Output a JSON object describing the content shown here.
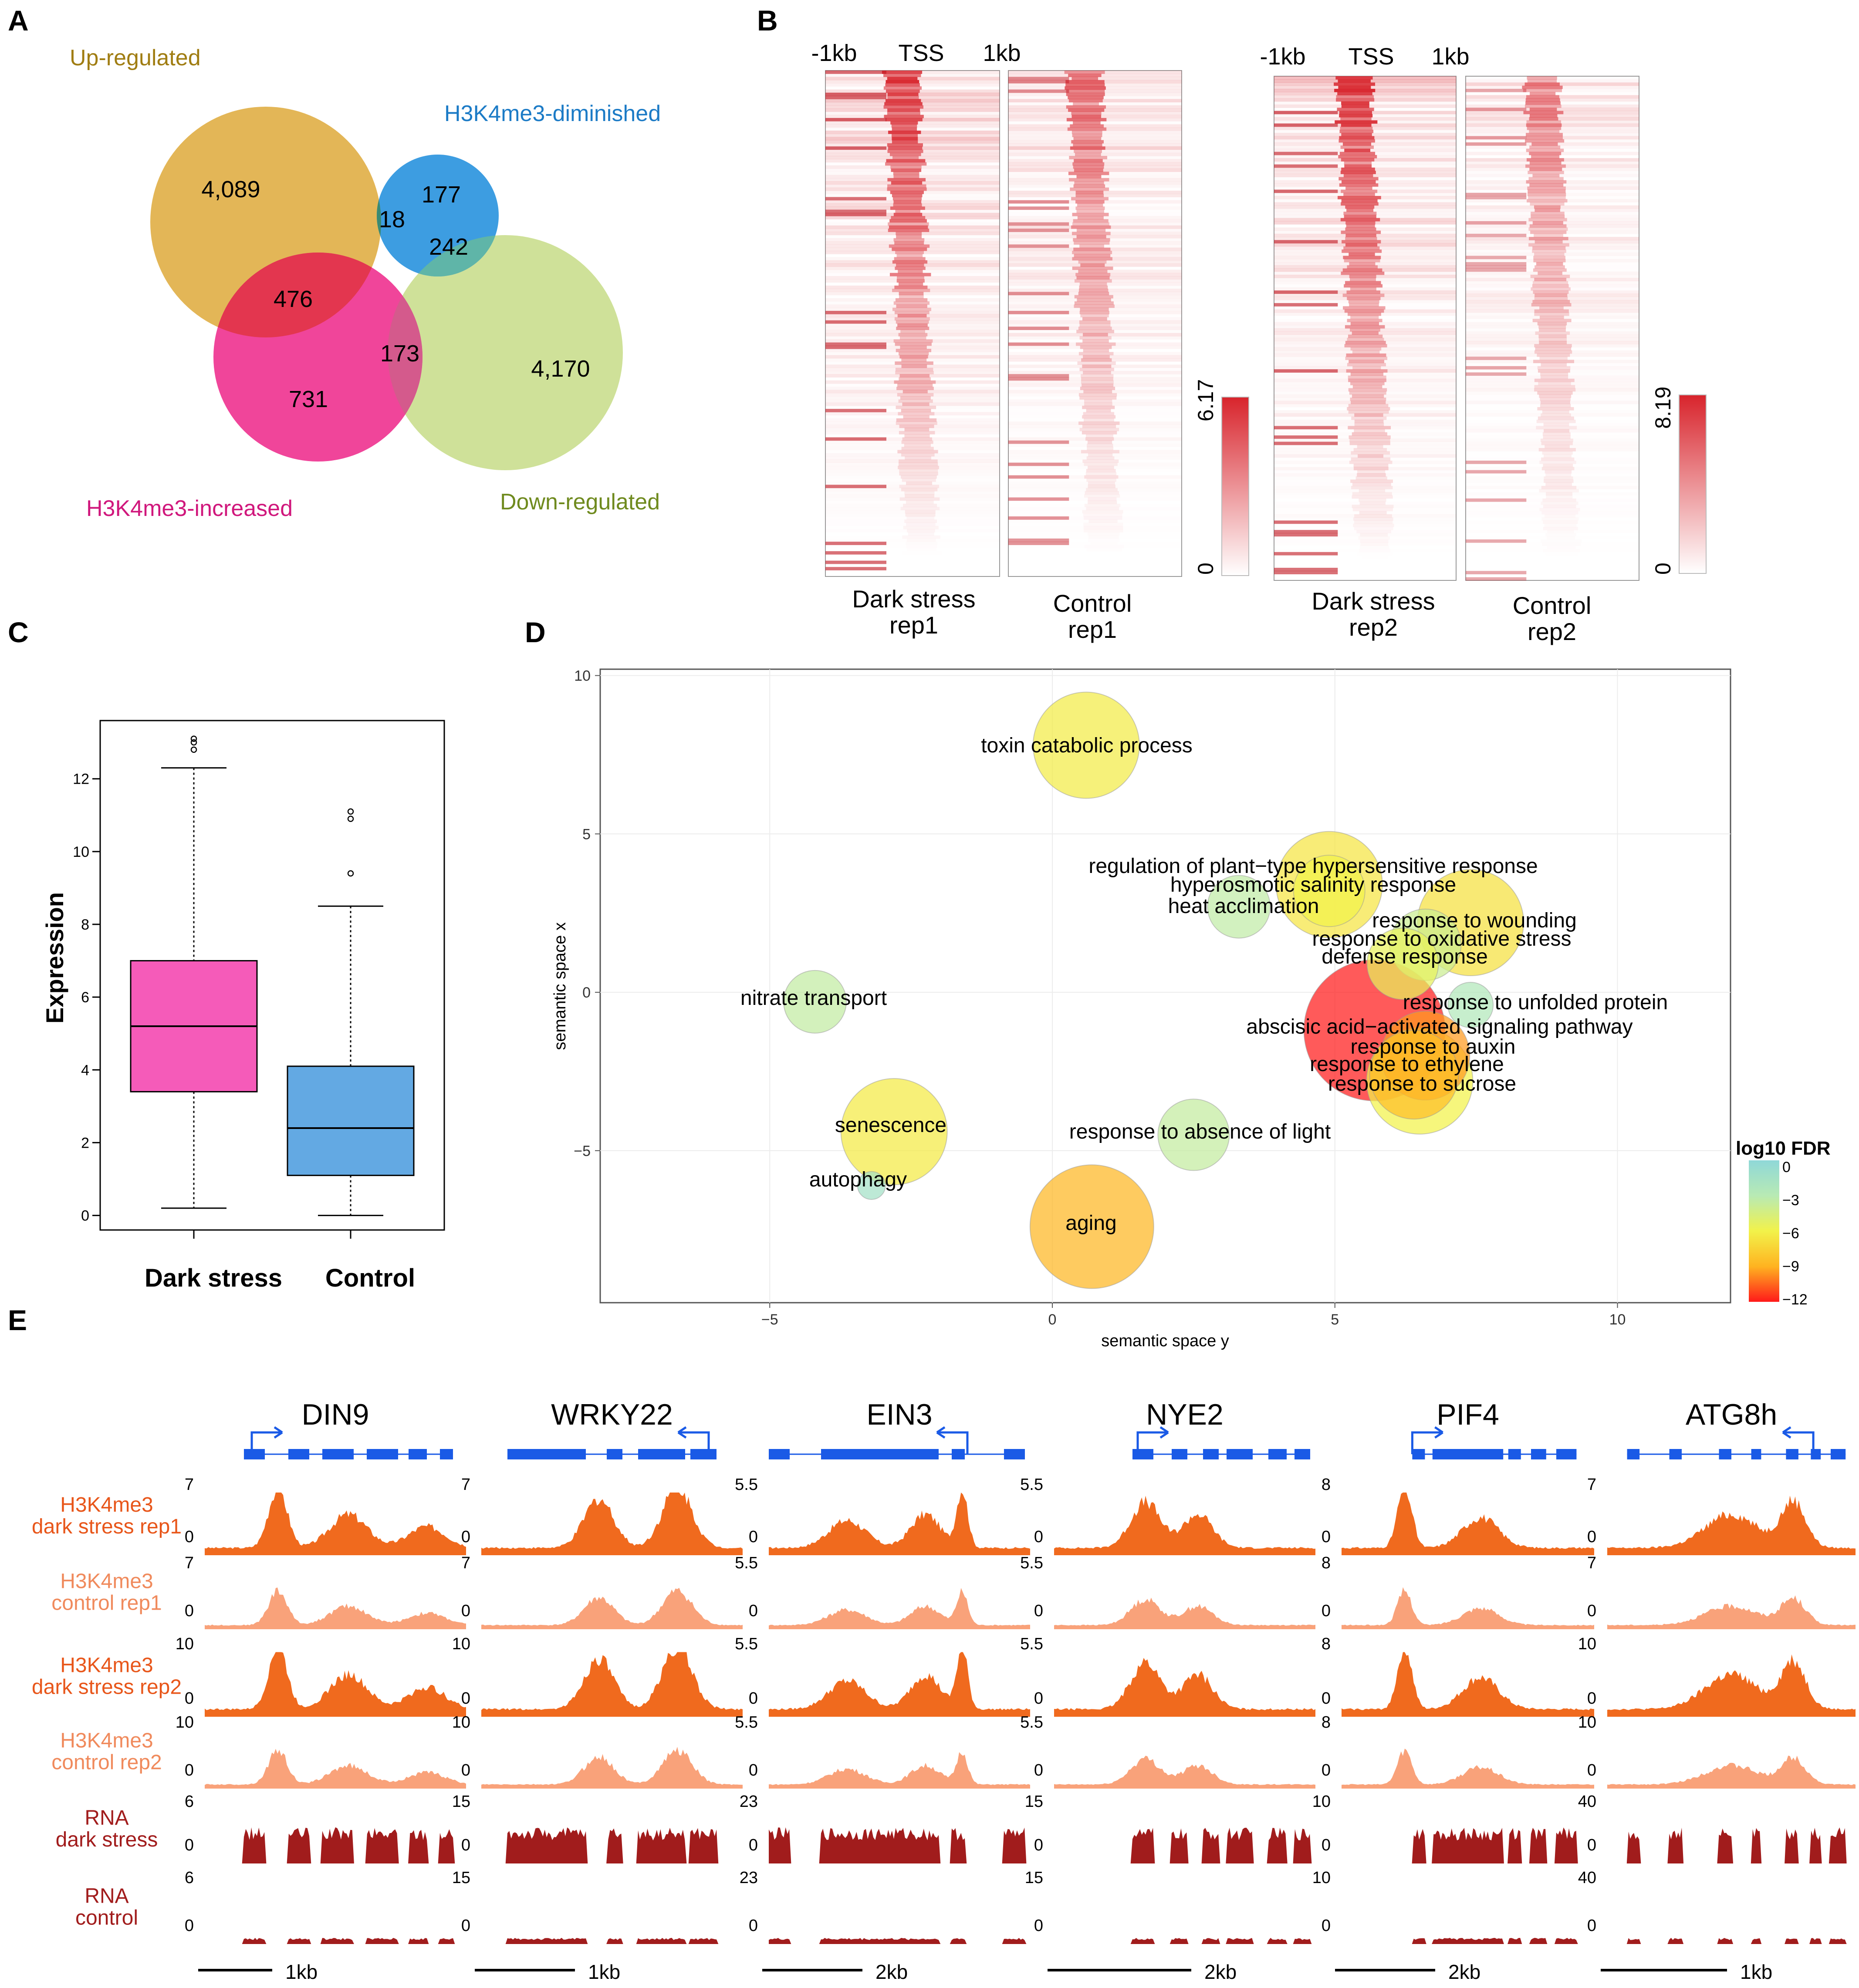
{
  "panels": {
    "A": "A",
    "B": "B",
    "C": "C",
    "D": "D",
    "E": "E"
  },
  "venn": {
    "labels": {
      "up": "Up-regulated",
      "diminished": "H3K4me3-diminished",
      "increased": "H3K4me3-increased",
      "down": "Down-regulated"
    },
    "counts": {
      "up_only": "4,089",
      "dim_only": "177",
      "up_dim": "18",
      "dim_down": "242",
      "up_inc": "476",
      "inc_down": "173",
      "inc_only": "731",
      "down_only": "4,170"
    },
    "colors": {
      "up": "#e3b657",
      "diminished": "#3d9de1",
      "increased": "#f0459a",
      "down": "#cfe199"
    }
  },
  "heatmaps": {
    "axis": {
      "left": "-1kb",
      "center": "TSS",
      "right": "1kb"
    },
    "samples": [
      {
        "line1": "Dark stress",
        "line2": "rep1"
      },
      {
        "line1": "Control",
        "line2": "rep1"
      },
      {
        "line1": "Dark stress",
        "line2": "rep2"
      },
      {
        "line1": "Control",
        "line2": "rep2"
      }
    ],
    "scales": [
      {
        "max": "6.17",
        "min": "0"
      },
      {
        "max": "8.19",
        "min": "0"
      }
    ],
    "color": "#d8242c"
  },
  "chart_data": [
    {
      "type": "box",
      "ylabel": "Expression",
      "categories": [
        "Dark stress",
        "Control"
      ],
      "yticks": [
        0,
        2,
        4,
        6,
        8,
        10,
        12
      ],
      "ylim": [
        -0.4,
        13.6
      ],
      "boxes": [
        {
          "name": "Dark stress",
          "whisker_low": 0.2,
          "q1": 3.4,
          "median": 5.2,
          "q3": 7.0,
          "whisker_high": 12.3,
          "outliers": [
            12.8,
            13.0,
            13.1
          ],
          "color": "#f55bb9"
        },
        {
          "name": "Control",
          "whisker_low": 0.0,
          "q1": 1.1,
          "median": 2.4,
          "q3": 4.1,
          "whisker_high": 8.5,
          "outliers": [
            9.4,
            10.9,
            11.1
          ],
          "color": "#63a9e3"
        }
      ]
    },
    {
      "type": "scatter",
      "xlabel": "semantic space y",
      "ylabel": "semantic space x",
      "xlim": [
        -8,
        12
      ],
      "ylim": [
        -9.8,
        10.2
      ],
      "xticks": [
        -5,
        0,
        5,
        10
      ],
      "yticks": [
        -5,
        0,
        5,
        10
      ],
      "legend_title": "log10 FDR",
      "legend_ticks": [
        "0",
        "−3",
        "−6",
        "−9",
        "−12"
      ],
      "points": [
        {
          "term": "toxin catabolic process",
          "x": 0.6,
          "y": 7.8,
          "fdr": -6.3,
          "size": 5
        },
        {
          "term": "regulation of plant−type hypersensitive response",
          "x": 4.9,
          "y": 3.4,
          "fdr": -6.6,
          "size": 5
        },
        {
          "term": "hyperosmotic salinity response",
          "x": 4.9,
          "y": 3.2,
          "fdr": -6.0,
          "size": 3
        },
        {
          "term": "heat acclimation",
          "x": 3.3,
          "y": 2.7,
          "fdr": -3.4,
          "size": 2.5
        },
        {
          "term": "response to wounding",
          "x": 7.4,
          "y": 2.2,
          "fdr": -6.8,
          "size": 5
        },
        {
          "term": "response to oxidative stress",
          "x": 6.6,
          "y": 1.5,
          "fdr": -4.0,
          "size": 3
        },
        {
          "term": "defense response",
          "x": 6.2,
          "y": 0.9,
          "fdr": -5.5,
          "size": 3
        },
        {
          "term": "response to unfolded protein",
          "x": 7.4,
          "y": -0.4,
          "fdr": -2.5,
          "size": 1.5
        },
        {
          "term": "abscisic acid−activated signaling pathway",
          "x": 5.7,
          "y": -1.2,
          "fdr": -12.0,
          "size": 7
        },
        {
          "term": "response to auxin",
          "x": 6.6,
          "y": -2.0,
          "fdr": -9.5,
          "size": 4
        },
        {
          "term": "response to ethylene",
          "x": 6.4,
          "y": -2.6,
          "fdr": -8.5,
          "size": 4
        },
        {
          "term": "response to sucrose",
          "x": 6.5,
          "y": -2.8,
          "fdr": -6.0,
          "size": 5
        },
        {
          "term": "nitrate transport",
          "x": -4.2,
          "y": -0.3,
          "fdr": -3.5,
          "size": 2.5
        },
        {
          "term": "senescence",
          "x": -2.8,
          "y": -4.4,
          "fdr": -6.4,
          "size": 5
        },
        {
          "term": "autophagy",
          "x": -3.2,
          "y": -6.1,
          "fdr": -1.5,
          "size": 0.5
        },
        {
          "term": "response to absence of light",
          "x": 2.5,
          "y": -4.5,
          "fdr": -3.6,
          "size": 3
        },
        {
          "term": "aging",
          "x": 0.7,
          "y": -7.4,
          "fdr": -8.8,
          "size": 6
        }
      ]
    }
  ],
  "tracks": {
    "genes": [
      "DIN9",
      "WRKY22",
      "EIN3",
      "NYE2",
      "PIF4",
      "ATG8h"
    ],
    "rows": [
      {
        "line1": "H3K4me3",
        "line2": "dark stress rep1",
        "color": "#f06a1e",
        "text_color": "#e8561a"
      },
      {
        "line1": "H3K4me3",
        "line2": "control rep1",
        "color": "#f9a27a",
        "text_color": "#f08a5c"
      },
      {
        "line1": "H3K4me3",
        "line2": "dark stress rep2",
        "color": "#f06a1e",
        "text_color": "#e8561a"
      },
      {
        "line1": "H3K4me3",
        "line2": "control rep2",
        "color": "#f9a27a",
        "text_color": "#f08a5c"
      },
      {
        "line1": "RNA",
        "line2": "dark stress",
        "color": "#a11c1c",
        "text_color": "#a11c1c"
      },
      {
        "line1": "RNA",
        "line2": "control",
        "color": "#a11c1c",
        "text_color": "#a11c1c"
      }
    ],
    "scale_max": [
      [
        "7",
        "7",
        "5.5",
        "5.5",
        "8",
        "7"
      ],
      [
        "7",
        "7",
        "5.5",
        "5.5",
        "8",
        "7"
      ],
      [
        "10",
        "10",
        "5.5",
        "5.5",
        "8",
        "10"
      ],
      [
        "10",
        "10",
        "5.5",
        "5.5",
        "8",
        "10"
      ],
      [
        "6",
        "15",
        "23",
        "15",
        "10",
        "40"
      ],
      [
        "6",
        "15",
        "23",
        "15",
        "10",
        "40"
      ]
    ],
    "scale_min": "0",
    "scalebars": [
      "1kb",
      "1kb",
      "2kb",
      "2kb",
      "2kb",
      "1kb"
    ],
    "gene_color": "#1a5ae6"
  }
}
